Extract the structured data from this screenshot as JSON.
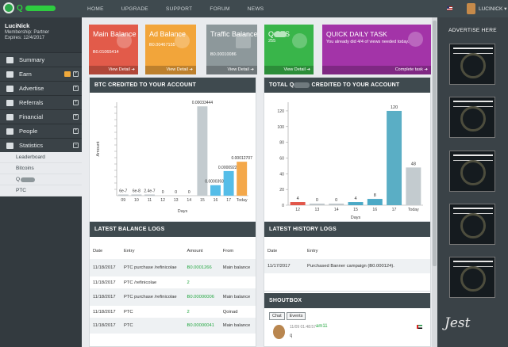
{
  "topbar": {
    "logo_text": "Q",
    "nav": [
      "HOME",
      "UPGRADE",
      "SUPPORT",
      "FORUM",
      "NEWS"
    ],
    "user": "LUCINICK ▾"
  },
  "sidebar": {
    "name": "LuciNick",
    "membership": "Membership: Partner",
    "expires": "Expires: 12/4/2017",
    "items": [
      {
        "label": "Summary",
        "icon": "monitor-icon"
      },
      {
        "label": "Earn",
        "icon": "dollar-icon"
      },
      {
        "label": "Advertise",
        "icon": "megaphone-icon"
      },
      {
        "label": "Referrals",
        "icon": "users-icon"
      },
      {
        "label": "Financial",
        "icon": "wallet-icon"
      },
      {
        "label": "People",
        "icon": "people-icon"
      },
      {
        "label": "Statistics",
        "icon": "bar-chart-icon"
      }
    ],
    "submenu": [
      "Leaderboard",
      "Bitcoins",
      "Q",
      "PTC"
    ]
  },
  "cards": [
    {
      "title": "Main Balance",
      "value": "Ƀ0.01065414",
      "foot": "View Detail ➔",
      "color": "#e25b4a"
    },
    {
      "title": "Ad Balance",
      "value": "Ƀ0.00467155",
      "foot": "View Detail ➔",
      "color": "#f2a53a"
    },
    {
      "title": "Traffic Balance",
      "value": "Ƀ0.00010086",
      "foot": "View Detail ➔",
      "color": "#8d989b"
    },
    {
      "title": "Q PTS",
      "value": "255",
      "foot": "View Detail ➔",
      "color": "#39b54a"
    },
    {
      "title": "QUICK DAILY TASK",
      "value": "You already did 4/4 of views needed today.",
      "foot": "Complete task ➔",
      "color": "#a334a8"
    }
  ],
  "btc_panel": {
    "title": "BTC CREDITED TO YOUR ACCOUNT"
  },
  "total_panel": {
    "title_a": "TOTAL Q",
    "title_b": " CREDITED TO YOUR ACCOUNT"
  },
  "balance_logs": {
    "title": "LATEST BALANCE LOGS",
    "headers": [
      "Date",
      "Entry",
      "Amount",
      "From"
    ],
    "rows": [
      [
        "11/18/2017",
        "PTC purchase /refinicolae",
        "Ƀ0.0001266",
        "Main balance"
      ],
      [
        "11/18/2017",
        "PTC /refinicolae",
        "2",
        ""
      ],
      [
        "11/18/2017",
        "PTC purchase /refinicolae",
        "Ƀ0.00000006",
        "Main balance"
      ],
      [
        "11/18/2017",
        "PTC",
        "2",
        "Qoinad"
      ],
      [
        "11/18/2017",
        "PTC",
        "Ƀ0.00000041",
        "Main balance"
      ]
    ]
  },
  "history_logs": {
    "title": "LATEST HISTORY LOGS",
    "headers": [
      "Date",
      "Entry"
    ],
    "rows": [
      [
        "11/17/2017",
        "Purchased Banner campaign (Ƀ0.000124)."
      ]
    ]
  },
  "shoutbox": {
    "title": "SHOUTBOX",
    "tabs": [
      "Chat",
      "Events"
    ],
    "time": "11/09 01:48:57",
    "user": "am11",
    "msg": "q"
  },
  "right": {
    "title": "ADVERTISE HERE",
    "signature": "Jest"
  },
  "chart_data": [
    {
      "type": "bar",
      "title": "BTC CREDITED TO YOUR ACCOUNT",
      "xlabel": "Days",
      "ylabel": "Amount",
      "categories": [
        "09",
        "10",
        "11",
        "12",
        "13",
        "14",
        "15",
        "16",
        "17",
        "Today"
      ],
      "values": [
        6e-07,
        6e-08,
        2.4e-07,
        0,
        0,
        0,
        0.00033444,
        3.931e-05,
        9.223e-05,
        0.00012707
      ],
      "labels": [
        "6e-7",
        "6e-8",
        "2.4e-7",
        "0",
        "0",
        "0",
        "0.00033444",
        "0.00003931",
        "0.00009223",
        "0.00012707"
      ],
      "colors": [
        "#bfc6ca",
        "#bfc6ca",
        "#bfc6ca",
        "#bfc6ca",
        "#bfc6ca",
        "#bfc6ca",
        "#c3cbcf",
        "#55bde8",
        "#55bde8",
        "#f4a84a"
      ],
      "ylim": [
        0,
        0.00035
      ]
    },
    {
      "type": "bar",
      "title": "TOTAL Q CREDITED TO YOUR ACCOUNT",
      "xlabel": "Days",
      "categories": [
        "12",
        "13",
        "14",
        "15",
        "16",
        "17",
        "Today"
      ],
      "values": [
        4,
        0,
        0,
        4,
        8,
        120,
        48
      ],
      "colors": [
        "#e2564a",
        "#bfc6ca",
        "#bfc6ca",
        "#4ba9c6",
        "#4ba9c6",
        "#5aaec5",
        "#c3cbcf"
      ],
      "yticks": [
        0,
        20,
        40,
        60,
        80,
        100,
        120
      ],
      "ylim": [
        0,
        130
      ]
    }
  ]
}
